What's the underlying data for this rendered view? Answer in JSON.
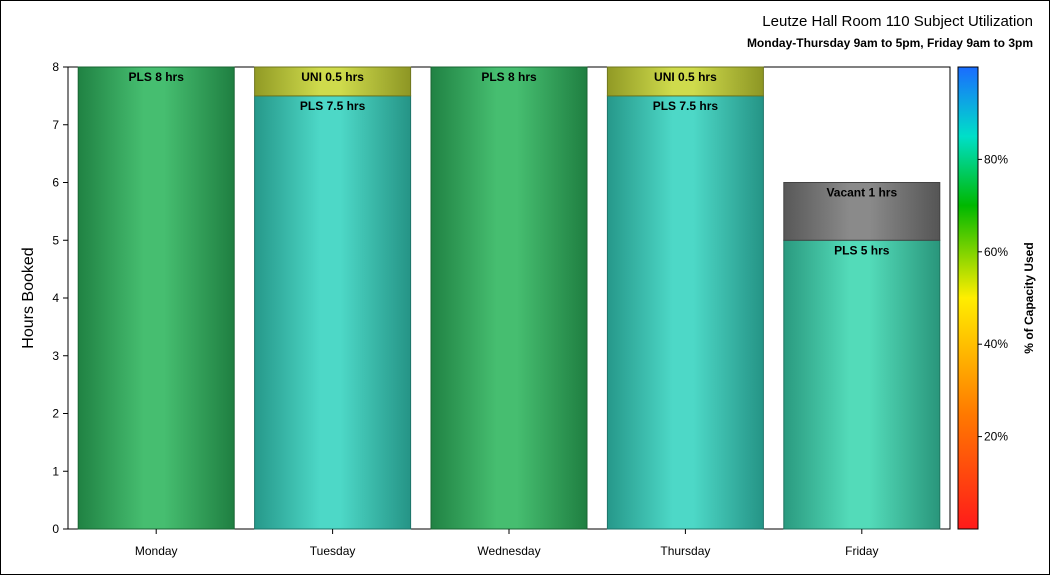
{
  "chart_data": {
    "type": "bar",
    "title": "Leutze Hall Room 110 Subject Utilization",
    "subtitle": "Monday-Thursday 9am to 5pm, Friday 9am to 3pm",
    "xlabel": "",
    "ylabel": "Hours Booked",
    "ylim": [
      0,
      8
    ],
    "yticks": [
      "0",
      "1",
      "2",
      "3",
      "4",
      "5",
      "6",
      "7",
      "8"
    ],
    "categories": [
      "Monday",
      "Tuesday",
      "Wednesday",
      "Thursday",
      "Friday"
    ],
    "bars": [
      {
        "category": "Monday",
        "segments": [
          {
            "label": "PLS 8 hrs",
            "value": 8,
            "capacity_pct": 70,
            "color": "#2db55d"
          }
        ]
      },
      {
        "category": "Tuesday",
        "segments": [
          {
            "label": "PLS 7.5 hrs",
            "value": 7.5,
            "capacity_pct": 87,
            "color": "#35d3bf"
          },
          {
            "label": "UNI 0.5 hrs",
            "value": 0.5,
            "capacity_pct": 50,
            "color": "#c9d634"
          }
        ]
      },
      {
        "category": "Wednesday",
        "segments": [
          {
            "label": "PLS 8 hrs",
            "value": 8,
            "capacity_pct": 70,
            "color": "#2db55d"
          }
        ]
      },
      {
        "category": "Thursday",
        "segments": [
          {
            "label": "PLS 7.5 hrs",
            "value": 7.5,
            "capacity_pct": 87,
            "color": "#35d3bf"
          },
          {
            "label": "UNI 0.5 hrs",
            "value": 0.5,
            "capacity_pct": 50,
            "color": "#c9d634"
          }
        ]
      },
      {
        "category": "Friday",
        "segments": [
          {
            "label": "PLS 5 hrs",
            "value": 5,
            "capacity_pct": 83,
            "color": "#3bd6b0"
          },
          {
            "label": "Vacant 1 hrs",
            "value": 1,
            "capacity_pct": null,
            "color": "#7a7a7a"
          }
        ]
      }
    ],
    "colorbar": {
      "label": "% of Capacity Used",
      "ticks": [
        "20%",
        "40%",
        "60%",
        "80%"
      ],
      "range": [
        0,
        100
      ],
      "tick_values": [
        20,
        40,
        60,
        80
      ],
      "stops": [
        {
          "pct": 0,
          "color": "#ff1a1a"
        },
        {
          "pct": 25,
          "color": "#ff7a00"
        },
        {
          "pct": 50,
          "color": "#ffee00"
        },
        {
          "pct": 70,
          "color": "#00b800"
        },
        {
          "pct": 85,
          "color": "#00dfc8"
        },
        {
          "pct": 100,
          "color": "#1a6cff"
        }
      ]
    },
    "grid": false,
    "legend": "right colorbar"
  }
}
